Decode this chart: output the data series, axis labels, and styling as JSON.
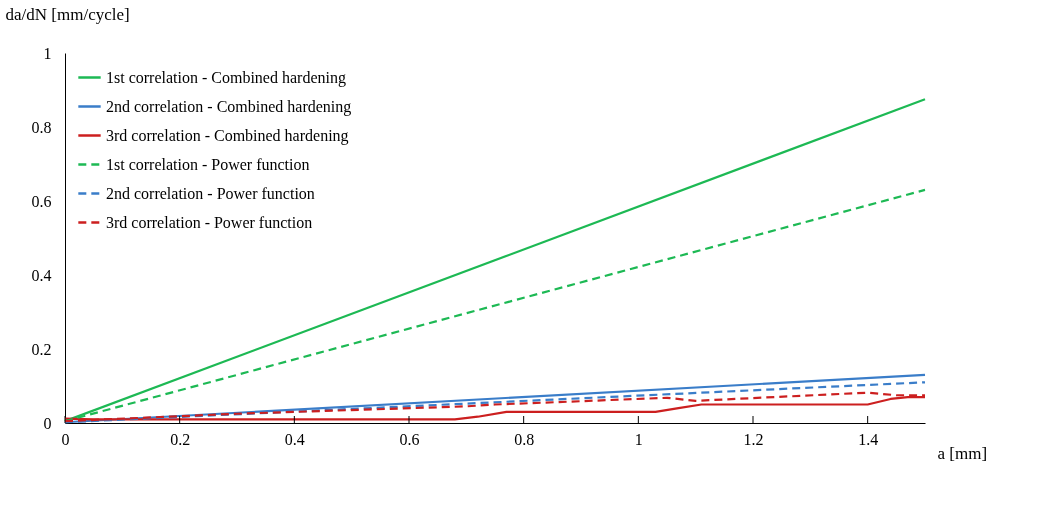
{
  "chart_data": {
    "type": "line",
    "xlabel": "a [mm]",
    "ylabel": "da/dN [mm/cycle]",
    "xlim": [
      0,
      1.5
    ],
    "ylim": [
      0,
      1
    ],
    "xticks": [
      0,
      0.2,
      0.4,
      0.6,
      0.8,
      1,
      1.2,
      1.4
    ],
    "yticks": [
      0,
      0.2,
      0.4,
      0.6,
      0.8,
      1
    ],
    "grid": false,
    "legend": "top left",
    "marker": "none",
    "series": [
      {
        "name": "1st correlation - Combined hardening",
        "color": "#1db954",
        "line_style": "solid",
        "x": [
          0,
          1.5
        ],
        "values": [
          0.005,
          0.875
        ]
      },
      {
        "name": "2nd correlation - Combined hardening",
        "color": "#3a7dc9",
        "line_style": "solid",
        "x": [
          0,
          1.5
        ],
        "values": [
          0.002,
          0.13
        ]
      },
      {
        "name": "3rd correlation - Combined hardening",
        "color": "#cc1f1f",
        "line_style": "solid",
        "x": [
          0,
          0.05,
          0.68,
          0.72,
          0.77,
          1.03,
          1.07,
          1.11,
          1.4,
          1.44,
          1.47,
          1.5
        ],
        "values": [
          0.012,
          0.01,
          0.01,
          0.017,
          0.03,
          0.03,
          0.04,
          0.05,
          0.05,
          0.065,
          0.07,
          0.07
        ]
      },
      {
        "name": "1st correlation - Power function",
        "color": "#1db954",
        "line_style": "dashed",
        "x": [
          0,
          1.5
        ],
        "values": [
          0.005,
          0.63
        ]
      },
      {
        "name": "2nd correlation - Power function",
        "color": "#3a7dc9",
        "line_style": "dashed",
        "x": [
          0,
          1.5
        ],
        "values": [
          0.002,
          0.11
        ]
      },
      {
        "name": "3rd correlation - Power function",
        "color": "#cc1f1f",
        "line_style": "dashed",
        "x": [
          0,
          0.3,
          0.7,
          0.75,
          1.05,
          1.1,
          1.4,
          1.45,
          1.5
        ],
        "values": [
          0.005,
          0.025,
          0.045,
          0.05,
          0.068,
          0.06,
          0.082,
          0.075,
          0.075
        ]
      }
    ]
  }
}
